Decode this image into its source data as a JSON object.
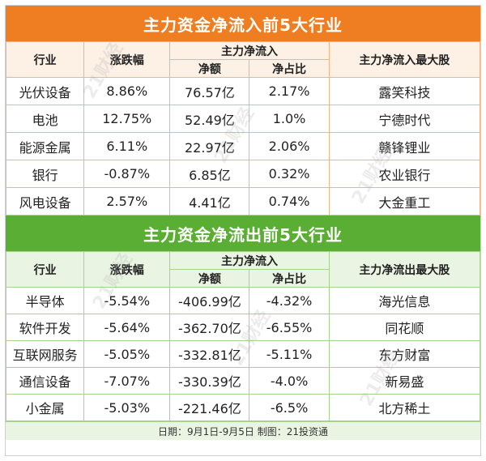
{
  "top": {
    "title": "主力资金净流入前5大行业",
    "headers": {
      "industry": "行业",
      "change": "涨跌幅",
      "group": "主力净流入",
      "net": "净额",
      "ratio": "净占比",
      "top_stock": "主力净流入最大股"
    },
    "rows": [
      {
        "industry": "光伏设备",
        "change": "8.86%",
        "net": "76.57亿",
        "ratio": "2.17%",
        "stock": "露笑科技"
      },
      {
        "industry": "电池",
        "change": "12.75%",
        "net": "52.49亿",
        "ratio": "1.0%",
        "stock": "宁德时代"
      },
      {
        "industry": "能源金属",
        "change": "6.11%",
        "net": "22.97亿",
        "ratio": "2.06%",
        "stock": "赣锋锂业"
      },
      {
        "industry": "银行",
        "change": "-0.87%",
        "net": "6.85亿",
        "ratio": "0.32%",
        "stock": "农业银行"
      },
      {
        "industry": "风电设备",
        "change": "2.57%",
        "net": "4.41亿",
        "ratio": "0.74%",
        "stock": "大金重工"
      }
    ]
  },
  "bottom": {
    "title": "主力资金净流出前5大行业",
    "headers": {
      "industry": "行业",
      "change": "涨跌幅",
      "group": "主力净流入",
      "net": "净额",
      "ratio": "净占比",
      "top_stock": "主力净流出最大股"
    },
    "rows": [
      {
        "industry": "半导体",
        "change": "-5.54%",
        "net": "-406.99亿",
        "ratio": "-4.32%",
        "stock": "海光信息"
      },
      {
        "industry": "软件开发",
        "change": "-5.64%",
        "net": "-362.70亿",
        "ratio": "-6.55%",
        "stock": "同花顺"
      },
      {
        "industry": "互联网服务",
        "change": "-5.05%",
        "net": "-332.81亿",
        "ratio": "-5.11%",
        "stock": "东方财富"
      },
      {
        "industry": "通信设备",
        "change": "-7.07%",
        "net": "-330.39亿",
        "ratio": "-4.0%",
        "stock": "新易盛"
      },
      {
        "industry": "小金属",
        "change": "-5.03%",
        "net": "-221.46亿",
        "ratio": "-6.5%",
        "stock": "北方稀土"
      }
    ]
  },
  "footer": "日期：9月1日-9月5日 制图：21投资通",
  "watermark_text": "21财经",
  "colors": {
    "top_accent": "#ef7d22",
    "bottom_accent": "#5aae33"
  }
}
